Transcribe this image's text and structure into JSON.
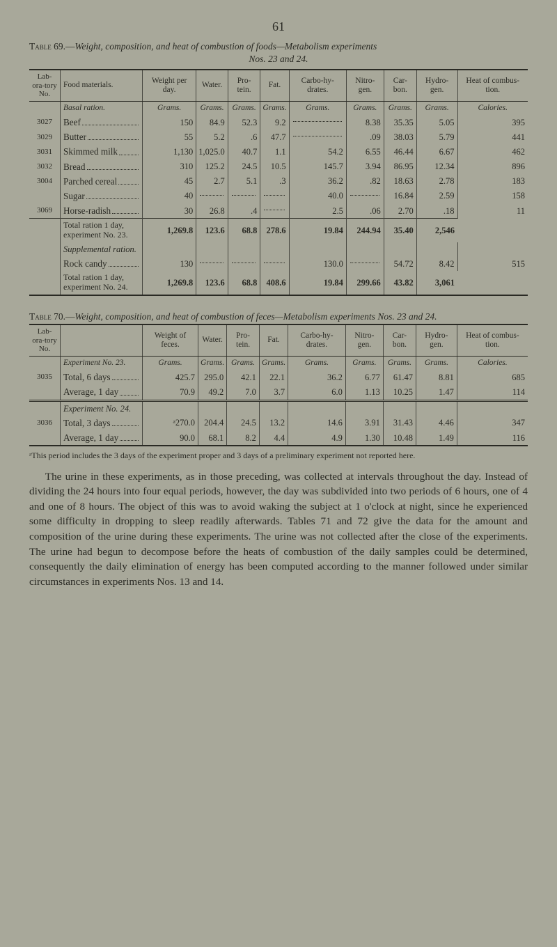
{
  "page_number": "61",
  "table69": {
    "title_pre": "Table",
    "title_num": " 69.—",
    "title_rest": "Weight, composition, and heat of combustion of foods—Metabolism experiments",
    "subtitle": "Nos. 23 and 24.",
    "headers": [
      "Lab-ora-tory No.",
      "Food materials.",
      "Weight per day.",
      "Water.",
      "Pro-tein.",
      "Fat.",
      "Carbo-hy-drates.",
      "Nitro-gen.",
      "Car-bon.",
      "Hydro-gen.",
      "Heat of combus-tion."
    ],
    "units": [
      "",
      "",
      "Grams.",
      "Grams.",
      "Grams.",
      "Grams.",
      "Grams.",
      "Grams.",
      "Grams.",
      "Grams.",
      "Calories."
    ],
    "section1": "Basal ration.",
    "rows1": [
      [
        "3027",
        "Beef",
        "150",
        "84.9",
        "52.3",
        "9.2",
        "",
        "8.38",
        "35.35",
        "5.05",
        "395"
      ],
      [
        "3029",
        "Butter",
        "55",
        "5.2",
        ".6",
        "47.7",
        "",
        ".09",
        "38.03",
        "5.79",
        "441"
      ],
      [
        "3031",
        "Skimmed milk",
        "1,130",
        "1,025.0",
        "40.7",
        "1.1",
        "54.2",
        "6.55",
        "46.44",
        "6.67",
        "462"
      ],
      [
        "3032",
        "Bread",
        "310",
        "125.2",
        "24.5",
        "10.5",
        "145.7",
        "3.94",
        "86.95",
        "12.34",
        "896"
      ],
      [
        "3004",
        "Parched cereal",
        "45",
        "2.7",
        "5.1",
        ".3",
        "36.2",
        ".82",
        "18.63",
        "2.78",
        "183"
      ],
      [
        "",
        "Sugar",
        "40",
        "",
        "",
        "",
        "40.0",
        "",
        "16.84",
        "2.59",
        "158"
      ],
      [
        "3069",
        "Horse-radish",
        "30",
        "26.8",
        ".4",
        "",
        "2.5",
        ".06",
        "2.70",
        ".18",
        "11"
      ]
    ],
    "total1_label": "Total ration 1 day, experiment No. 23.",
    "total1": [
      "",
      "",
      "1,269.8",
      "123.6",
      "68.8",
      "278.6",
      "19.84",
      "244.94",
      "35.40",
      "2,546"
    ],
    "section2": "Supplemental ration.",
    "rows2": [
      [
        "",
        "Rock candy",
        "130",
        "",
        "",
        "",
        "130.0",
        "",
        "54.72",
        "8.42",
        "515"
      ]
    ],
    "total2_label": "Total ration 1 day, experiment No. 24.",
    "total2": [
      "",
      "",
      "1,269.8",
      "123.6",
      "68.8",
      "408.6",
      "19.84",
      "299.66",
      "43.82",
      "3,061"
    ]
  },
  "table70": {
    "title_pre": "Table",
    "title_num": " 70.—",
    "title_rest": "Weight, composition, and heat of combustion of feces—Metabolism experiments Nos. 23 and 24.",
    "headers": [
      "Lab-ora-tory No.",
      "",
      "Weight of feces.",
      "Water.",
      "Pro-tein.",
      "Fat.",
      "Carbo-hy-drates.",
      "Nitro-gen.",
      "Car-bon.",
      "Hydro-gen.",
      "Heat of combus-tion."
    ],
    "units": [
      "",
      "",
      "Grams.",
      "Grams.",
      "Grams.",
      "Grams.",
      "Grams.",
      "Grams.",
      "Grams.",
      "Grams.",
      "Calories."
    ],
    "sectionA": "Experiment No. 23.",
    "rowsA": [
      [
        "3035",
        "Total, 6 days",
        "425.7",
        "295.0",
        "42.1",
        "22.1",
        "36.2",
        "6.77",
        "61.47",
        "8.81",
        "685"
      ],
      [
        "",
        "Average, 1 day",
        "70.9",
        "49.2",
        "7.0",
        "3.7",
        "6.0",
        "1.13",
        "10.25",
        "1.47",
        "114"
      ]
    ],
    "sectionB": "Experiment No. 24.",
    "rowsB": [
      [
        "3036",
        "Total, 3 days",
        "ᵃ270.0",
        "204.4",
        "24.5",
        "13.2",
        "14.6",
        "3.91",
        "31.43",
        "4.46",
        "347"
      ],
      [
        "",
        "Average, 1 day",
        "90.0",
        "68.1",
        "8.2",
        "4.4",
        "4.9",
        "1.30",
        "10.48",
        "1.49",
        "116"
      ]
    ]
  },
  "footnote": "ᵃThis period includes the 3 days of the experiment proper and 3 days of a preliminary experiment not reported here.",
  "body": "The urine in these experiments, as in those preceding, was collected at intervals throughout the day. Instead of dividing the 24 hours into four equal periods, however, the day was subdivided into two periods of 6 hours, one of 4 and one of 8 hours. The object of this was to avoid waking the subject at 1 o'clock at night, since he experienced some difficulty in dropping to sleep readily afterwards. Tables 71 and 72 give the data for the amount and composition of the urine during these experiments. The urine was not collected after the close of the experiments. The urine had begun to decompose before the heats of combustion of the daily samples could be determined, consequently the daily elimination of energy has been computed according to the manner followed under similar circumstances in experiments Nos. 13 and 14."
}
